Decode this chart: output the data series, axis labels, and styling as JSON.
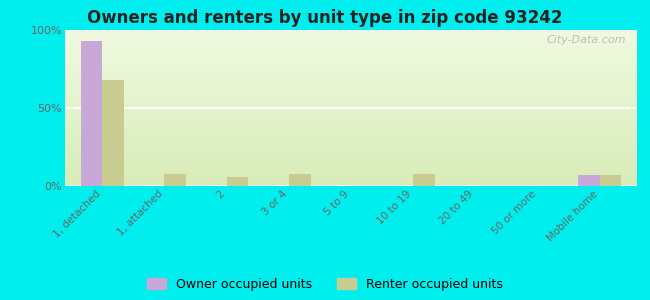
{
  "title": "Owners and renters by unit type in zip code 93242",
  "categories": [
    "1, detached",
    "1, attached",
    "2",
    "3 or 4",
    "5 to 9",
    "10 to 19",
    "20 to 49",
    "50 or more",
    "Mobile home"
  ],
  "owner_values": [
    93,
    0,
    0,
    0,
    0,
    0,
    0,
    0,
    7
  ],
  "renter_values": [
    68,
    8,
    6,
    8,
    0,
    8,
    0,
    0,
    7
  ],
  "owner_color": "#c8a8d8",
  "renter_color": "#c8cc90",
  "outer_bg": "#00eeee",
  "plot_bg": "#eef5dc",
  "ylim": [
    0,
    100
  ],
  "yticks": [
    0,
    50,
    100
  ],
  "ytick_labels": [
    "0%",
    "50%",
    "100%"
  ],
  "bar_width": 0.35,
  "legend_owner": "Owner occupied units",
  "legend_renter": "Renter occupied units",
  "watermark": "City-Data.com"
}
